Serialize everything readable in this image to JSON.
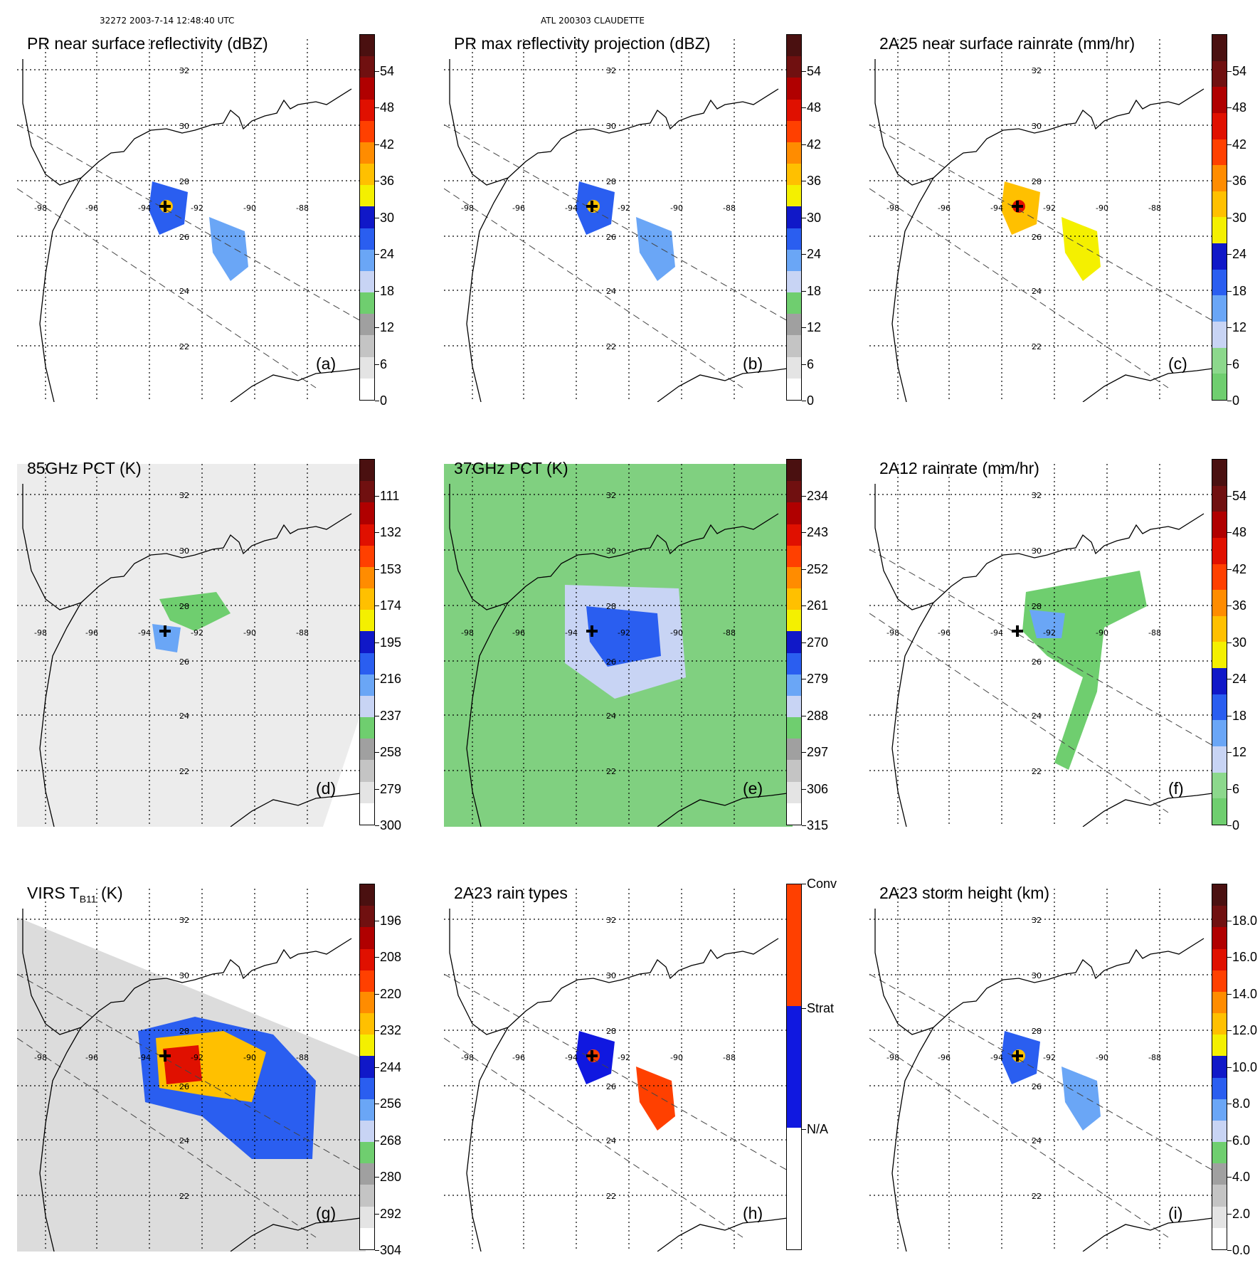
{
  "header": {
    "orbit_time": "32272 2003-7-14 12:48:40 UTC",
    "storm": "ATL 200303 CLAUDETTE"
  },
  "map": {
    "lon_labels": [
      "-98",
      "-96",
      "-94",
      "-92",
      "-90",
      "-88"
    ],
    "lat_labels": [
      "32",
      "30",
      "28",
      "26",
      "24",
      "22"
    ]
  },
  "panels": [
    {
      "id": "a",
      "title": "PR near surface reflectivity (dBZ)",
      "label": "(a)",
      "colorbar_ticks": [
        "0",
        "6",
        "12",
        "18",
        "24",
        "30",
        "36",
        "42",
        "48",
        "54"
      ],
      "colors": [
        "#ffffff",
        "#e4e4e4",
        "#c4c4c4",
        "#a0a0a0",
        "#6fce6f",
        "#c8d4f4",
        "#6aa6f6",
        "#2a5ef0",
        "#1018c8",
        "#f4f000",
        "#ffc000",
        "#ff8c00",
        "#ff4000",
        "#e01000",
        "#b00000",
        "#701010",
        "#4a1010"
      ]
    },
    {
      "id": "b",
      "title": "PR max reflectivity projection (dBZ)",
      "label": "(b)",
      "colorbar_ticks": [
        "0",
        "6",
        "12",
        "18",
        "24",
        "30",
        "36",
        "42",
        "48",
        "54"
      ],
      "colors": [
        "#ffffff",
        "#e4e4e4",
        "#c4c4c4",
        "#a0a0a0",
        "#6fce6f",
        "#c8d4f4",
        "#6aa6f6",
        "#2a5ef0",
        "#1018c8",
        "#f4f000",
        "#ffc000",
        "#ff8c00",
        "#ff4000",
        "#e01000",
        "#b00000",
        "#701010",
        "#4a1010"
      ]
    },
    {
      "id": "c",
      "title": "2A25 near surface rainrate (mm/hr)",
      "label": "(c)",
      "colorbar_ticks": [
        "0",
        "6",
        "12",
        "18",
        "24",
        "30",
        "36",
        "42",
        "48",
        "54"
      ],
      "colors": [
        "#6fce6f",
        "#8cd88c",
        "#c8d4f4",
        "#6aa6f6",
        "#2a5ef0",
        "#1018c8",
        "#f4f000",
        "#ffc000",
        "#ff8c00",
        "#ff4000",
        "#e01000",
        "#b00000",
        "#701010",
        "#4a1010"
      ]
    },
    {
      "id": "d",
      "title": "85GHz PCT (K)",
      "label": "(d)",
      "colorbar_ticks": [
        "300",
        "279",
        "258",
        "237",
        "216",
        "195",
        "174",
        "153",
        "132",
        "111"
      ],
      "colors": [
        "#ffffff",
        "#e4e4e4",
        "#c4c4c4",
        "#a0a0a0",
        "#6fce6f",
        "#c8d4f4",
        "#6aa6f6",
        "#2a5ef0",
        "#1018c8",
        "#f4f000",
        "#ffc000",
        "#ff8c00",
        "#ff4000",
        "#e01000",
        "#b00000",
        "#701010",
        "#4a1010"
      ]
    },
    {
      "id": "e",
      "title": "37GHz PCT (K)",
      "label": "(e)",
      "colorbar_ticks": [
        "315",
        "306",
        "297",
        "288",
        "279",
        "270",
        "261",
        "252",
        "243",
        "234"
      ],
      "colors": [
        "#ffffff",
        "#e4e4e4",
        "#c4c4c4",
        "#a0a0a0",
        "#6fce6f",
        "#c8d4f4",
        "#6aa6f6",
        "#2a5ef0",
        "#1018c8",
        "#f4f000",
        "#ffc000",
        "#ff8c00",
        "#ff4000",
        "#e01000",
        "#b00000",
        "#701010",
        "#4a1010"
      ]
    },
    {
      "id": "f",
      "title": "2A12 rainrate (mm/hr)",
      "label": "(f)",
      "colorbar_ticks": [
        "0",
        "6",
        "12",
        "18",
        "24",
        "30",
        "36",
        "42",
        "48",
        "54"
      ],
      "colors": [
        "#6fce6f",
        "#8cd88c",
        "#c8d4f4",
        "#6aa6f6",
        "#2a5ef0",
        "#1018c8",
        "#f4f000",
        "#ffc000",
        "#ff8c00",
        "#ff4000",
        "#e01000",
        "#b00000",
        "#701010",
        "#4a1010"
      ]
    },
    {
      "id": "g",
      "title_main": "VIRS T",
      "title_sub": "B11",
      "title_unit": " (K)",
      "label": "(g)",
      "colorbar_ticks": [
        "304",
        "292",
        "280",
        "268",
        "256",
        "244",
        "232",
        "220",
        "208",
        "196"
      ],
      "colors": [
        "#ffffff",
        "#e4e4e4",
        "#c4c4c4",
        "#a0a0a0",
        "#6fce6f",
        "#c8d4f4",
        "#6aa6f6",
        "#2a5ef0",
        "#1018c8",
        "#f4f000",
        "#ffc000",
        "#ff8c00",
        "#ff4000",
        "#e01000",
        "#b00000",
        "#701010",
        "#4a1010"
      ]
    },
    {
      "id": "h",
      "title": "2A23 rain types",
      "label": "(h)",
      "colorbar_ticks": [
        "N/A",
        "Strat",
        "Conv"
      ],
      "colors": [
        "#ffffff",
        "#1018e0",
        "#ff4000"
      ]
    },
    {
      "id": "i",
      "title": "2A23 storm height (km)",
      "label": "(i)",
      "colorbar_ticks": [
        "0.0",
        "2.0",
        "4.0",
        "6.0",
        "8.0",
        "10.0",
        "12.0",
        "14.0",
        "16.0",
        "18.0"
      ],
      "colors": [
        "#ffffff",
        "#e4e4e4",
        "#c4c4c4",
        "#a0a0a0",
        "#6fce6f",
        "#c8d4f4",
        "#6aa6f6",
        "#2a5ef0",
        "#1018c8",
        "#f4f000",
        "#ffc000",
        "#ff8c00",
        "#ff4000",
        "#e01000",
        "#b00000",
        "#701010",
        "#4a1010"
      ]
    }
  ]
}
